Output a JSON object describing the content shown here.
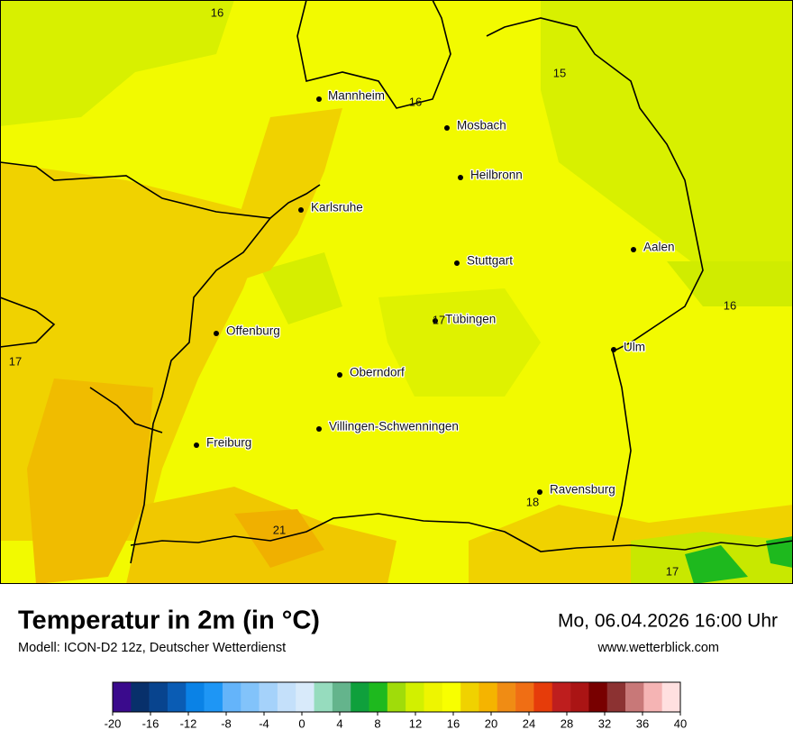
{
  "map": {
    "cities": [
      "Mannheim",
      "Mosbach",
      "Heilbronn",
      "Karlsruhe",
      "Aalen",
      "Stuttgart",
      "Tübingen",
      "Offenburg",
      "Ulm",
      "Oberndorf",
      "Villingen-Schwenningen",
      "Freiburg",
      "Ravensburg"
    ],
    "temperature_labels": [
      16,
      15,
      16,
      16,
      17,
      17,
      21,
      18,
      17
    ]
  },
  "footer": {
    "title": "Temperatur in 2m (in °C)",
    "subtitle": "Modell: ICON-D2 12z, Deutscher Wetterdienst",
    "datetime": "Mo, 06.04.2026 16:00 Uhr",
    "website": "www.wetterblick.com"
  },
  "colorbar": {
    "lim": [
      -20,
      40
    ],
    "ticks": [
      -20,
      -16,
      -12,
      -8,
      -4,
      0,
      4,
      8,
      12,
      16,
      20,
      24,
      28,
      32,
      36,
      40
    ],
    "colors": [
      "#3a0a8c",
      "#08306b",
      "#08448e",
      "#0a5cb4",
      "#0a82e6",
      "#1e96f5",
      "#64b4fa",
      "#82c3fa",
      "#a5d2fa",
      "#c4e0fa",
      "#d8eafa",
      "#96dcbe",
      "#64b48c",
      "#0fa03c",
      "#1eb91e",
      "#a0dc0a",
      "#d2f000",
      "#eef500",
      "#f8ff00",
      "#f0d200",
      "#f5b400",
      "#f08c14",
      "#f06e14",
      "#e63c0a",
      "#be1e1e",
      "#aa1414",
      "#780000",
      "#8c3232",
      "#c87878",
      "#f5b4b4",
      "#ffe0e0"
    ]
  }
}
